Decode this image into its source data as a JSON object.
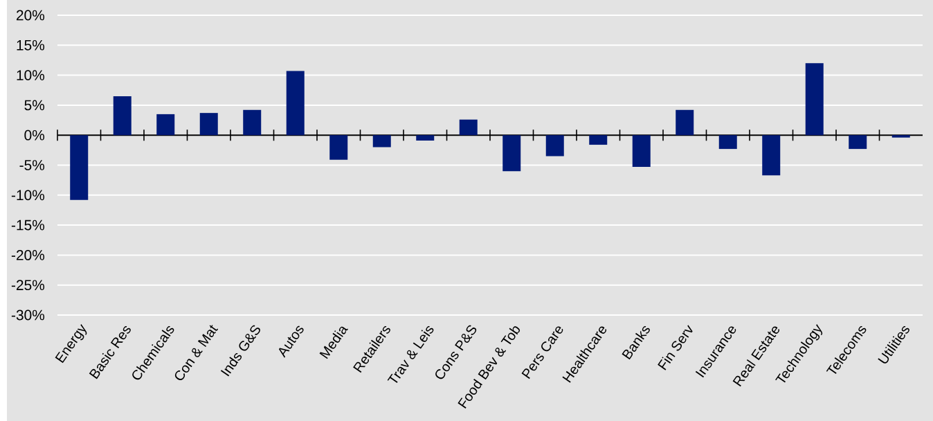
{
  "chart_data": {
    "type": "bar",
    "categories": [
      "Energy",
      "Basic Res",
      "Chemicals",
      "Con & Mat",
      "Inds G&S",
      "Autos",
      "Media",
      "Retailers",
      "Trav & Leis",
      "Cons P&S",
      "Food Bev & Tob",
      "Pers Care",
      "Healthcare",
      "Banks",
      "Fin Serv",
      "Insurance",
      "Real Estate",
      "Technology",
      "Telecoms",
      "Utilities"
    ],
    "values": [
      -10.8,
      6.5,
      3.5,
      3.7,
      4.2,
      10.7,
      -4.1,
      -2.0,
      -0.9,
      2.6,
      -6.0,
      -3.5,
      -1.6,
      -5.3,
      4.2,
      -2.3,
      -6.7,
      12.0,
      -2.3,
      -0.4
    ],
    "color": "#001a78",
    "ylim": [
      -30,
      20
    ],
    "yticks": [
      {
        "value": -30,
        "label": "-30%"
      },
      {
        "value": -25,
        "label": "-25%"
      },
      {
        "value": -20,
        "label": "-20%"
      },
      {
        "value": -15,
        "label": "-15%"
      },
      {
        "value": -10,
        "label": "-10%"
      },
      {
        "value": -5,
        "label": "-5%"
      },
      {
        "value": 0,
        "label": "0%"
      },
      {
        "value": 5,
        "label": "5%"
      },
      {
        "value": 10,
        "label": "10%"
      },
      {
        "value": 15,
        "label": "15%"
      },
      {
        "value": 20,
        "label": "20%"
      }
    ],
    "grid": "y"
  }
}
